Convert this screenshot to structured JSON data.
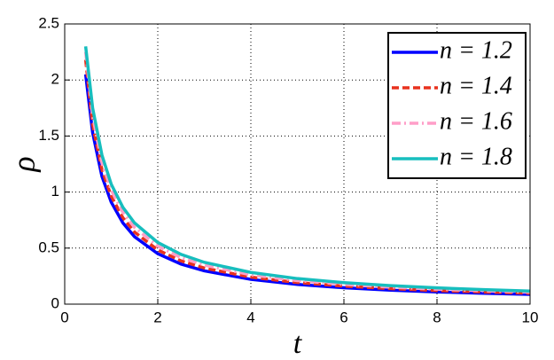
{
  "chart_data": {
    "type": "line",
    "x_label": "t",
    "y_label": "ρ",
    "x": [
      0.45,
      0.6,
      0.8,
      1,
      1.25,
      1.5,
      2,
      2.5,
      3,
      4,
      5,
      6,
      7,
      8,
      9,
      10
    ],
    "series": [
      {
        "name": "n = 1.2",
        "color": "#0000ff",
        "linestyle": "solid",
        "values": [
          2.05,
          1.53,
          1.14,
          0.91,
          0.725,
          0.602,
          0.45,
          0.357,
          0.297,
          0.221,
          0.176,
          0.146,
          0.125,
          0.109,
          0.097,
          0.087
        ]
      },
      {
        "name": "n = 1.4",
        "color": "#e8321e",
        "linestyle": "dashed",
        "values": [
          2.18,
          1.6,
          1.2,
          0.963,
          0.771,
          0.643,
          0.483,
          0.386,
          0.322,
          0.241,
          0.193,
          0.161,
          0.138,
          0.121,
          0.108,
          0.097
        ]
      },
      {
        "name": "n = 1.6",
        "color": "#ff9ec8",
        "linestyle": "dashdot",
        "values": [
          2.25,
          1.68,
          1.26,
          1.017,
          0.818,
          0.685,
          0.517,
          0.415,
          0.348,
          0.262,
          0.21,
          0.177,
          0.152,
          0.133,
          0.119,
          0.107
        ]
      },
      {
        "name": "n = 1.8",
        "color": "#17bebe",
        "linestyle": "solid",
        "values": [
          2.3,
          1.75,
          1.33,
          1.07,
          0.864,
          0.725,
          0.55,
          0.444,
          0.373,
          0.283,
          0.228,
          0.192,
          0.165,
          0.145,
          0.13,
          0.117
        ]
      }
    ],
    "xlim": [
      0,
      10
    ],
    "xticks": [
      0,
      2,
      4,
      6,
      8,
      10
    ],
    "ylim": [
      0,
      2.5
    ],
    "yticks": [
      0,
      0.5,
      1,
      1.5,
      2,
      2.5
    ],
    "grid": true,
    "legend": "upper right"
  }
}
